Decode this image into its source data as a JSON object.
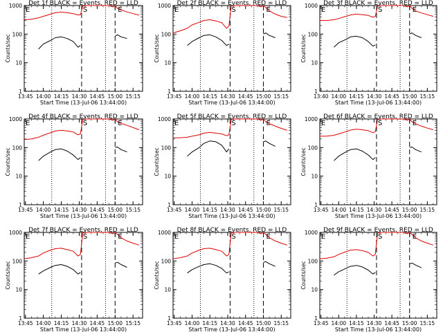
{
  "figure": {
    "colors": {
      "events": "#000000",
      "lld": "#e00000",
      "axis": "#000000"
    },
    "x_ticks": [
      "13:45",
      "14:00",
      "14:15",
      "14:30",
      "14:45",
      "15:00",
      "15:15"
    ],
    "x_ticks_panel3": [
      "13:40",
      "14:00",
      "14:15",
      "14:30",
      "14:45",
      "15:00",
      "15:15"
    ],
    "y_ticks": [
      "1",
      "10",
      "100",
      "1000"
    ],
    "ylabel": "Counts/sec",
    "markers": {
      "start": "S",
      "end": "E",
      "left_edge": "E"
    }
  },
  "chart_data": [
    {
      "type": "line",
      "title": "Det 1f BLACK = Events, RED = LLD",
      "xlabel": "Start Time (13-Jul-06 13:44:00)",
      "ylabel": "Counts/sec",
      "y_scale": "log",
      "ylim": [
        1,
        1000
      ],
      "x": [
        "13:44",
        "13:50",
        "13:56",
        "14:00",
        "14:06",
        "14:10",
        "14:15",
        "14:20",
        "14:25",
        "14:29",
        "14:31",
        "14:33",
        "14:36",
        "14:40",
        "14:50",
        "14:55",
        "14:58",
        "15:00",
        "15:02",
        "15:05",
        "15:10",
        "15:15",
        "15:20"
      ],
      "series": [
        {
          "name": "LLD",
          "color": "#e00000",
          "values": [
            320,
            330,
            370,
            420,
            500,
            560,
            590,
            560,
            520,
            470,
            480,
            950,
            1000,
            1000,
            1000,
            1000,
            900,
            1000,
            800,
            700,
            600,
            520,
            460
          ]
        },
        {
          "name": "Events",
          "color": "#000000",
          "values": [
            null,
            null,
            30,
            45,
            60,
            75,
            80,
            70,
            55,
            35,
            40,
            null,
            null,
            null,
            null,
            null,
            null,
            85,
            95,
            80,
            70,
            null,
            null
          ]
        }
      ],
      "vlines_dotted": [
        "14:07",
        "14:52"
      ],
      "vlines_dashed": [
        "14:32",
        "15:00"
      ]
    },
    {
      "type": "line",
      "title": "Det 2f BLACK = Events, RED = LLD",
      "xlabel": "Start Time (13-Jul-06 13:44:00)",
      "ylabel": "Counts/sec",
      "y_scale": "log",
      "ylim": [
        1,
        1000
      ],
      "x": [
        "13:44",
        "13:50",
        "13:56",
        "14:00",
        "14:06",
        "14:10",
        "14:15",
        "14:20",
        "14:25",
        "14:29",
        "14:31",
        "14:33",
        "14:36",
        "14:40",
        "14:50",
        "14:55",
        "14:58",
        "15:00",
        "15:02",
        "15:05",
        "15:10",
        "15:15",
        "15:20"
      ],
      "series": [
        {
          "name": "LLD",
          "color": "#e00000",
          "values": [
            110,
            130,
            160,
            210,
            260,
            300,
            320,
            290,
            250,
            160,
            190,
            950,
            1000,
            1000,
            1000,
            1000,
            900,
            1000,
            850,
            650,
            500,
            420,
            380
          ]
        },
        {
          "name": "Events",
          "color": "#000000",
          "values": [
            null,
            null,
            40,
            55,
            75,
            90,
            95,
            80,
            60,
            40,
            45,
            null,
            null,
            null,
            null,
            null,
            null,
            100,
            110,
            90,
            75,
            null,
            null
          ]
        }
      ],
      "vlines_dotted": [
        "14:07",
        "14:52"
      ],
      "vlines_dashed": [
        "14:32",
        "15:00"
      ]
    },
    {
      "type": "line",
      "title": "Det 3f BLACK = Events, RED = LLD",
      "xlabel": "Start Time (13-Jul-06 13:44:00)",
      "ylabel": "Counts/sec",
      "y_scale": "log",
      "ylim": [
        1,
        1000
      ],
      "x": [
        "13:44",
        "13:50",
        "13:56",
        "14:00",
        "14:06",
        "14:10",
        "14:15",
        "14:20",
        "14:25",
        "14:29",
        "14:31",
        "14:33",
        "14:36",
        "14:40",
        "14:50",
        "14:55",
        "14:58",
        "15:00",
        "15:02",
        "15:05",
        "15:10",
        "15:15",
        "15:20"
      ],
      "series": [
        {
          "name": "LLD",
          "color": "#e00000",
          "values": [
            300,
            300,
            320,
            350,
            420,
            470,
            500,
            480,
            450,
            390,
            420,
            950,
            1000,
            1000,
            1000,
            1000,
            900,
            1000,
            800,
            650,
            550,
            480,
            420
          ]
        },
        {
          "name": "Events",
          "color": "#000000",
          "values": [
            null,
            null,
            35,
            50,
            65,
            80,
            85,
            75,
            55,
            38,
            42,
            null,
            null,
            null,
            null,
            null,
            null,
            100,
            110,
            90,
            75,
            null,
            null
          ]
        }
      ],
      "vlines_dotted": [
        "14:07",
        "14:52"
      ],
      "vlines_dashed": [
        "14:32",
        "15:00"
      ]
    },
    {
      "type": "line",
      "title": "Det 4f BLACK = Events, RED = LLD",
      "xlabel": "Start Time (13-Jul-06 13:44:00)",
      "ylabel": "Counts/sec",
      "y_scale": "log",
      "ylim": [
        1,
        1000
      ],
      "x": [
        "13:44",
        "13:50",
        "13:56",
        "14:00",
        "14:06",
        "14:10",
        "14:15",
        "14:20",
        "14:25",
        "14:29",
        "14:31",
        "14:33",
        "14:36",
        "14:40",
        "14:50",
        "14:55",
        "14:58",
        "15:00",
        "15:02",
        "15:05",
        "15:10",
        "15:15",
        "15:20"
      ],
      "series": [
        {
          "name": "LLD",
          "color": "#e00000",
          "values": [
            190,
            200,
            230,
            270,
            330,
            380,
            400,
            380,
            350,
            280,
            300,
            950,
            1000,
            1000,
            1000,
            1000,
            900,
            1000,
            800,
            700,
            600,
            500,
            420
          ]
        },
        {
          "name": "Events",
          "color": "#000000",
          "values": [
            null,
            null,
            35,
            50,
            70,
            85,
            90,
            75,
            55,
            38,
            45,
            null,
            null,
            null,
            null,
            null,
            null,
            100,
            105,
            85,
            70,
            null,
            null
          ]
        }
      ],
      "vlines_dotted": [
        "14:07",
        "14:52"
      ],
      "vlines_dashed": [
        "14:32",
        "15:00"
      ]
    },
    {
      "type": "line",
      "title": "Det 5f BLACK = Events, RED = LLD",
      "xlabel": "Start Time (13-Jul-06 13:44:00)",
      "ylabel": "Counts/sec",
      "y_scale": "log",
      "ylim": [
        1,
        1000
      ],
      "x": [
        "13:44",
        "13:50",
        "13:56",
        "14:00",
        "14:06",
        "14:10",
        "14:15",
        "14:20",
        "14:25",
        "14:29",
        "14:31",
        "14:33",
        "14:36",
        "14:40",
        "14:50",
        "14:55",
        "14:58",
        "15:00",
        "15:02",
        "15:05",
        "15:10",
        "15:15",
        "15:20"
      ],
      "series": [
        {
          "name": "LLD",
          "color": "#e00000",
          "values": [
            220,
            220,
            230,
            250,
            280,
            320,
            340,
            320,
            300,
            260,
            280,
            950,
            1000,
            1000,
            1000,
            1000,
            900,
            1000,
            800,
            680,
            560,
            470,
            400
          ]
        },
        {
          "name": "Events",
          "color": "#000000",
          "values": [
            null,
            null,
            50,
            70,
            100,
            140,
            170,
            160,
            120,
            70,
            90,
            null,
            null,
            null,
            null,
            null,
            null,
            160,
            170,
            140,
            110,
            null,
            null
          ]
        }
      ],
      "vlines_dotted": [
        "14:07",
        "14:52"
      ],
      "vlines_dashed": [
        "14:32",
        "15:00"
      ]
    },
    {
      "type": "line",
      "title": "Det 6f BLACK = Events, RED = LLD",
      "xlabel": "Start Time (13-Jul-06 13:44:00)",
      "ylabel": "Counts/sec",
      "y_scale": "log",
      "ylim": [
        1,
        1000
      ],
      "x": [
        "13:44",
        "13:50",
        "13:56",
        "14:00",
        "14:06",
        "14:10",
        "14:15",
        "14:20",
        "14:25",
        "14:29",
        "14:31",
        "14:33",
        "14:36",
        "14:40",
        "14:50",
        "14:55",
        "14:58",
        "15:00",
        "15:02",
        "15:05",
        "15:10",
        "15:15",
        "15:20"
      ],
      "series": [
        {
          "name": "LLD",
          "color": "#e00000",
          "values": [
            250,
            250,
            270,
            300,
            360,
            410,
            440,
            420,
            390,
            330,
            360,
            950,
            1000,
            1000,
            1000,
            1000,
            900,
            1000,
            800,
            680,
            560,
            480,
            420
          ]
        },
        {
          "name": "Events",
          "color": "#000000",
          "values": [
            null,
            null,
            35,
            50,
            70,
            85,
            90,
            75,
            55,
            38,
            45,
            null,
            null,
            null,
            null,
            null,
            null,
            100,
            105,
            85,
            70,
            null,
            null
          ]
        }
      ],
      "vlines_dotted": [
        "14:07",
        "14:52"
      ],
      "vlines_dashed": [
        "14:32",
        "15:00"
      ]
    },
    {
      "type": "line",
      "title": "Det 7f BLACK = Events, RED = LLD",
      "xlabel": "Start Time (13-Jul-06 13:44:00)",
      "ylabel": "Counts/sec",
      "y_scale": "log",
      "ylim": [
        1,
        1000
      ],
      "x": [
        "13:44",
        "13:50",
        "13:56",
        "14:00",
        "14:06",
        "14:10",
        "14:15",
        "14:20",
        "14:25",
        "14:29",
        "14:31",
        "14:33",
        "14:36",
        "14:40",
        "14:50",
        "14:55",
        "14:58",
        "15:00",
        "15:02",
        "15:05",
        "15:10",
        "15:15",
        "15:20"
      ],
      "series": [
        {
          "name": "LLD",
          "color": "#e00000",
          "values": [
            120,
            130,
            150,
            190,
            240,
            270,
            280,
            250,
            220,
            150,
            170,
            950,
            1000,
            1000,
            1000,
            1000,
            900,
            1000,
            850,
            650,
            500,
            420,
            360
          ]
        },
        {
          "name": "Events",
          "color": "#000000",
          "values": [
            null,
            null,
            35,
            45,
            60,
            70,
            75,
            65,
            50,
            35,
            40,
            null,
            null,
            null,
            null,
            null,
            null,
            85,
            90,
            75,
            60,
            null,
            null
          ]
        }
      ],
      "vlines_dotted": [
        "14:07",
        "14:52"
      ],
      "vlines_dashed": [
        "14:32",
        "15:00"
      ]
    },
    {
      "type": "line",
      "title": "Det 8f BLACK = Events, RED = LLD",
      "xlabel": "Start Time (13-Jul-06 13:44:00)",
      "ylabel": "Counts/sec",
      "y_scale": "log",
      "ylim": [
        1,
        1000
      ],
      "x": [
        "13:44",
        "13:50",
        "13:56",
        "14:00",
        "14:06",
        "14:10",
        "14:15",
        "14:20",
        "14:25",
        "14:29",
        "14:31",
        "14:33",
        "14:36",
        "14:40",
        "14:50",
        "14:55",
        "14:58",
        "15:00",
        "15:02",
        "15:05",
        "15:10",
        "15:15",
        "15:20"
      ],
      "series": [
        {
          "name": "LLD",
          "color": "#e00000",
          "values": [
            120,
            130,
            150,
            190,
            240,
            270,
            280,
            250,
            220,
            150,
            170,
            950,
            1000,
            1000,
            1000,
            1000,
            900,
            1000,
            850,
            650,
            500,
            420,
            360
          ]
        },
        {
          "name": "Events",
          "color": "#000000",
          "values": [
            null,
            null,
            38,
            50,
            65,
            75,
            80,
            70,
            55,
            38,
            42,
            null,
            null,
            null,
            null,
            null,
            null,
            90,
            95,
            80,
            65,
            null,
            null
          ]
        }
      ],
      "vlines_dotted": [
        "14:07",
        "14:52"
      ],
      "vlines_dashed": [
        "14:32",
        "15:00"
      ]
    },
    {
      "type": "line",
      "title": "Det 9f BLACK = Events, RED = LLD",
      "xlabel": "Start Time (13-Jul-06 13:44:00)",
      "ylabel": "Counts/sec",
      "y_scale": "log",
      "ylim": [
        1,
        1000
      ],
      "x": [
        "13:44",
        "13:50",
        "13:56",
        "14:00",
        "14:06",
        "14:10",
        "14:15",
        "14:20",
        "14:25",
        "14:29",
        "14:31",
        "14:33",
        "14:36",
        "14:40",
        "14:50",
        "14:55",
        "14:58",
        "15:00",
        "15:02",
        "15:05",
        "15:10",
        "15:15",
        "15:20"
      ],
      "series": [
        {
          "name": "LLD",
          "color": "#e00000",
          "values": [
            120,
            125,
            140,
            170,
            210,
            240,
            250,
            230,
            200,
            150,
            170,
            950,
            1000,
            1000,
            1000,
            1000,
            900,
            1000,
            850,
            650,
            500,
            420,
            360
          ]
        },
        {
          "name": "Events",
          "color": "#000000",
          "values": [
            null,
            null,
            32,
            42,
            55,
            65,
            70,
            62,
            48,
            35,
            40,
            null,
            null,
            null,
            null,
            null,
            null,
            80,
            85,
            72,
            58,
            null,
            null
          ]
        }
      ],
      "vlines_dotted": [
        "14:07",
        "14:52"
      ],
      "vlines_dashed": [
        "14:32",
        "15:00"
      ]
    }
  ]
}
